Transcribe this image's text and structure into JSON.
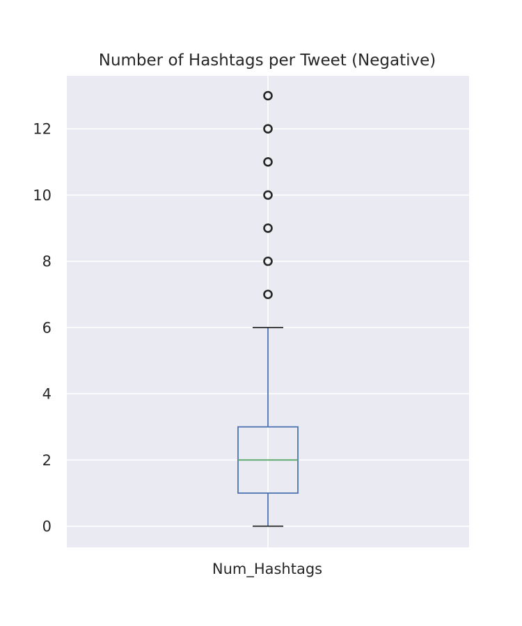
{
  "chart_data": {
    "type": "box",
    "title": "Number of Hashtags per Tweet (Negative)",
    "xlabel": "",
    "ylabel": "",
    "categories": [
      "Num_Hashtags"
    ],
    "box": {
      "min": 0,
      "q1": 1,
      "median": 2,
      "q3": 3,
      "max": 6,
      "outliers": [
        7,
        8,
        9,
        10,
        11,
        12,
        13
      ]
    },
    "ylim": [
      -0.64,
      13.6
    ],
    "yticks": [
      0,
      2,
      4,
      6,
      8,
      10,
      12
    ],
    "grid": true,
    "colors": {
      "background": "#eaeaf2",
      "grid": "#ffffff",
      "box": "#4c72b0",
      "median": "#55a868",
      "caps": "#262626",
      "outlier": "#262626"
    }
  }
}
